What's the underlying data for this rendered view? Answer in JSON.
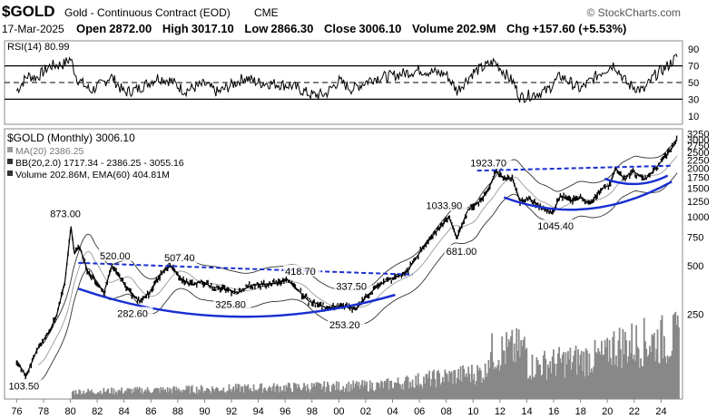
{
  "header": {
    "symbol": "$GOLD",
    "name": "Gold - Continuous Contract (EOD)",
    "exchange": "CME",
    "brand": "© StockCharts.com",
    "date": "17-Mar-2025",
    "open_label": "Open",
    "open": "2872.00",
    "high_label": "High",
    "high": "3017.10",
    "low_label": "Low",
    "low": "2866.30",
    "close_label": "Close",
    "close": "3006.10",
    "volume_label": "Volume",
    "volume": "202.9M",
    "chg_label": "Chg",
    "chg": "+157.60 (+5.53%)"
  },
  "chart_data": [
    {
      "type": "line",
      "title": "RSI(14) 80.99",
      "ylim": [
        0,
        100
      ],
      "yticks": [
        "90",
        "70",
        "50",
        "30",
        "10"
      ],
      "hlines": [
        70,
        50,
        30
      ],
      "series": [
        {
          "name": "RSI(14)",
          "x": [
            1976.0,
            1976.8,
            1977.5,
            1978.5,
            1979.5,
            1980.0,
            1980.5,
            1981.5,
            1982.5,
            1983.0,
            1984.0,
            1985.0,
            1986.5,
            1987.5,
            1988.5,
            1990.0,
            1991.0,
            1993.0,
            1994.0,
            1995.5,
            1996.5,
            1998.0,
            1999.0,
            2000.0,
            2001.0,
            2002.5,
            2004.0,
            2006.0,
            2008.0,
            2008.8,
            2010.0,
            2011.6,
            2013.0,
            2013.5,
            2015.5,
            2016.5,
            2018.0,
            2019.5,
            2020.5,
            2021.5,
            2022.7,
            2023.5,
            2024.5,
            2025.2
          ],
          "y": [
            40,
            58,
            56,
            70,
            72,
            79,
            55,
            40,
            50,
            58,
            38,
            42,
            56,
            52,
            40,
            48,
            38,
            56,
            50,
            48,
            46,
            35,
            36,
            52,
            42,
            55,
            58,
            65,
            60,
            40,
            62,
            75,
            50,
            32,
            40,
            58,
            42,
            62,
            72,
            48,
            40,
            58,
            70,
            81
          ]
        }
      ]
    },
    {
      "type": "line",
      "title": "$GOLD (Monthly) 3006.10",
      "scale": "log",
      "legend": [
        "MA(20) 2386.25",
        "BB(20,2.0) 1717.34 - 2386.25 - 3055.16",
        "Volume 202.86M, EMA(60) 404.81M"
      ],
      "yticks": [
        3250,
        3000,
        2750,
        2500,
        2250,
        2000,
        1750,
        1500,
        1250,
        1000,
        750,
        500,
        250
      ],
      "xticks": [
        "76",
        "78",
        "80",
        "82",
        "84",
        "86",
        "88",
        "90",
        "92",
        "94",
        "96",
        "98",
        "00",
        "02",
        "04",
        "06",
        "08",
        "10",
        "12",
        "14",
        "16",
        "18",
        "20",
        "22",
        "24"
      ],
      "series": [
        {
          "name": "$GOLD",
          "x": [
            1976.0,
            1976.7,
            1977.5,
            1978.5,
            1979.0,
            1979.6,
            1980.05,
            1980.3,
            1980.7,
            1981.3,
            1981.9,
            1982.5,
            1983.1,
            1983.7,
            1984.5,
            1985.2,
            1986.0,
            1986.8,
            1987.5,
            1988.2,
            1989.0,
            1989.8,
            1990.5,
            1991.5,
            1992.5,
            1993.5,
            1994.5,
            1995.5,
            1996.1,
            1997.0,
            1997.8,
            1998.5,
            1999.2,
            1999.9,
            2000.5,
            2001.3,
            2002.0,
            2003.0,
            2004.0,
            2005.0,
            2006.3,
            2007.2,
            2008.2,
            2008.8,
            2009.6,
            2010.5,
            2011.0,
            2011.7,
            2012.4,
            2012.9,
            2013.5,
            2014.2,
            2015.0,
            2015.9,
            2016.5,
            2017.3,
            2018.0,
            2018.7,
            2019.6,
            2020.2,
            2020.6,
            2021.2,
            2022.0,
            2022.8,
            2023.5,
            2024.2,
            2024.8,
            2025.2
          ],
          "y": [
            130,
            104,
            150,
            200,
            250,
            400,
            873,
            600,
            650,
            460,
            400,
            340,
            500,
            420,
            340,
            300,
            350,
            450,
            500,
            420,
            380,
            400,
            370,
            360,
            340,
            380,
            385,
            390,
            415,
            350,
            300,
            290,
            270,
            280,
            280,
            270,
            320,
            380,
            420,
            450,
            650,
            800,
            1000,
            740,
            1100,
            1250,
            1400,
            1900,
            1700,
            1750,
            1250,
            1300,
            1150,
            1050,
            1350,
            1250,
            1320,
            1200,
            1500,
            1580,
            2000,
            1750,
            1900,
            1700,
            1950,
            2300,
            2650,
            3006
          ]
        },
        {
          "name": "Volume",
          "values": []
        }
      ],
      "annotations": [
        "873.00",
        "520.00",
        "507.40",
        "418.70",
        "337.50",
        "282.60",
        "325.80",
        "253.20",
        "103.50",
        "1033.90",
        "681.00",
        "1923.70",
        "1045.40"
      ]
    }
  ],
  "xticks": [
    "76",
    "78",
    "80",
    "82",
    "84",
    "86",
    "88",
    "90",
    "92",
    "94",
    "96",
    "98",
    "00",
    "02",
    "04",
    "06",
    "08",
    "10",
    "12",
    "14",
    "16",
    "18",
    "20",
    "22",
    "24"
  ]
}
